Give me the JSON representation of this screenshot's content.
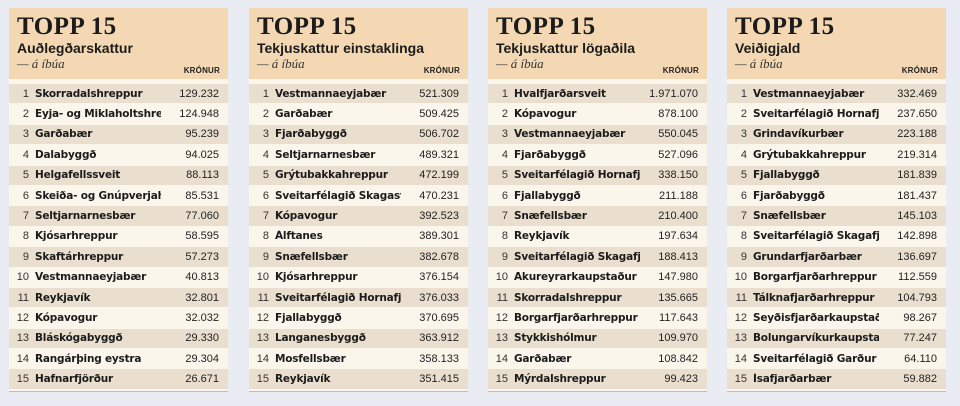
{
  "panels": [
    {
      "heading": "TOPP 15",
      "subtitle": "Auðlegðarskattur",
      "per_resident": "— á íbúa",
      "unit": "KRÓNUR",
      "rows": [
        {
          "rank": "1",
          "name": "Skorradalshreppur",
          "value": "129.232"
        },
        {
          "rank": "2",
          "name": "Eyja- og Miklaholtshreppur",
          "value": "124.948"
        },
        {
          "rank": "3",
          "name": "Garðabær",
          "value": "95.239"
        },
        {
          "rank": "4",
          "name": "Dalabyggð",
          "value": "94.025"
        },
        {
          "rank": "5",
          "name": "Helgafellssveit",
          "value": "88.113"
        },
        {
          "rank": "6",
          "name": "Skeiða- og Gnúpverjahreppur",
          "value": "85.531"
        },
        {
          "rank": "7",
          "name": "Seltjarnarnesbær",
          "value": "77.060"
        },
        {
          "rank": "8",
          "name": "Kjósarhreppur",
          "value": "58.595"
        },
        {
          "rank": "9",
          "name": "Skaftárhreppur",
          "value": "57.273"
        },
        {
          "rank": "10",
          "name": "Vestmannaeyjabær",
          "value": "40.813"
        },
        {
          "rank": "11",
          "name": "Reykjavík",
          "value": "32.801"
        },
        {
          "rank": "12",
          "name": "Kópavogur",
          "value": "32.032"
        },
        {
          "rank": "13",
          "name": "Bláskógabyggð",
          "value": "29.330"
        },
        {
          "rank": "14",
          "name": "Rangárþing eystra",
          "value": "29.304"
        },
        {
          "rank": "15",
          "name": "Hafnarfjörður",
          "value": "26.671"
        }
      ]
    },
    {
      "heading": "TOPP 15",
      "subtitle": "Tekjuskattur einstaklinga",
      "per_resident": "— á íbúa",
      "unit": "KRÓNUR",
      "rows": [
        {
          "rank": "1",
          "name": "Vestmannaeyjabær",
          "value": "521.309"
        },
        {
          "rank": "2",
          "name": "Garðabær",
          "value": "509.425"
        },
        {
          "rank": "3",
          "name": "Fjarðabyggð",
          "value": "506.702"
        },
        {
          "rank": "4",
          "name": "Seltjarnarnesbær",
          "value": "489.321"
        },
        {
          "rank": "5",
          "name": "Grýtubakkahreppur",
          "value": "472.199"
        },
        {
          "rank": "6",
          "name": "Sveitarfélagið Skagaströnd",
          "value": "470.231"
        },
        {
          "rank": "7",
          "name": "Kópavogur",
          "value": "392.523"
        },
        {
          "rank": "8",
          "name": "Álftanes",
          "value": "389.301"
        },
        {
          "rank": "9",
          "name": "Snæfellsbær",
          "value": "382.678"
        },
        {
          "rank": "10",
          "name": "Kjósarhreppur",
          "value": "376.154"
        },
        {
          "rank": "11",
          "name": "Sveitarfélagið Hornafjörður",
          "value": "376.033"
        },
        {
          "rank": "12",
          "name": "Fjallabyggð",
          "value": "370.695"
        },
        {
          "rank": "13",
          "name": "Langanesbyggð",
          "value": "363.912"
        },
        {
          "rank": "14",
          "name": "Mosfellsbær",
          "value": "358.133"
        },
        {
          "rank": "15",
          "name": "Reykjavík",
          "value": "351.415"
        }
      ]
    },
    {
      "heading": "TOPP 15",
      "subtitle": "Tekjuskattur lögaðila",
      "per_resident": "— á íbúa",
      "unit": "KRÓNUR",
      "rows": [
        {
          "rank": "1",
          "name": "Hvalfjarðarsveit",
          "value": "1.971.070"
        },
        {
          "rank": "2",
          "name": "Kópavogur",
          "value": "878.100"
        },
        {
          "rank": "3",
          "name": "Vestmannaeyjabær",
          "value": "550.045"
        },
        {
          "rank": "4",
          "name": "Fjarðabyggð",
          "value": "527.096"
        },
        {
          "rank": "5",
          "name": "Sveitarfélagið Hornafjörður",
          "value": "338.150"
        },
        {
          "rank": "6",
          "name": "Fjallabyggð",
          "value": "211.188"
        },
        {
          "rank": "7",
          "name": "Snæfellsbær",
          "value": "210.400"
        },
        {
          "rank": "8",
          "name": "Reykjavík",
          "value": "197.634"
        },
        {
          "rank": "9",
          "name": "Sveitarfélagið Skagafjörður",
          "value": "188.413"
        },
        {
          "rank": "10",
          "name": "Akureyrarkaupstaður",
          "value": "147.980"
        },
        {
          "rank": "11",
          "name": "Skorradalshreppur",
          "value": "135.665"
        },
        {
          "rank": "12",
          "name": "Borgarfjarðarhreppur",
          "value": "117.643"
        },
        {
          "rank": "13",
          "name": "Stykkishólmur",
          "value": "109.970"
        },
        {
          "rank": "14",
          "name": "Garðabær",
          "value": "108.842"
        },
        {
          "rank": "15",
          "name": "Mýrdalshreppur",
          "value": "99.423"
        }
      ]
    },
    {
      "heading": "TOPP 15",
      "subtitle": "Veiðigjald",
      "per_resident": "— á íbúa",
      "unit": "KRÓNUR",
      "rows": [
        {
          "rank": "1",
          "name": "Vestmannaeyjabær",
          "value": "332.469"
        },
        {
          "rank": "2",
          "name": "Sveitarfélagið Hornafjörður",
          "value": "237.650"
        },
        {
          "rank": "3",
          "name": "Grindavíkurbær",
          "value": "223.188"
        },
        {
          "rank": "4",
          "name": "Grýtubakkahreppur",
          "value": "219.314"
        },
        {
          "rank": "5",
          "name": "Fjallabyggð",
          "value": "181.839"
        },
        {
          "rank": "6",
          "name": "Fjarðabyggð",
          "value": "181.437"
        },
        {
          "rank": "7",
          "name": "Snæfellsbær",
          "value": "145.103"
        },
        {
          "rank": "8",
          "name": "Sveitarfélagið Skagafjörður",
          "value": "142.898"
        },
        {
          "rank": "9",
          "name": "Grundarfjarðarbær",
          "value": "136.697"
        },
        {
          "rank": "10",
          "name": "Borgarfjarðarhreppur",
          "value": "112.559"
        },
        {
          "rank": "11",
          "name": "Tálknafjarðarhreppur",
          "value": "104.793"
        },
        {
          "rank": "12",
          "name": "Seyðisfjarðarkaupstaður",
          "value": "98.267"
        },
        {
          "rank": "13",
          "name": "Bolungarvíkurkaupstaður",
          "value": "77.247"
        },
        {
          "rank": "14",
          "name": "Sveitarfélagið Garður",
          "value": "64.110"
        },
        {
          "rank": "15",
          "name": "Ísafjarðarbær",
          "value": "59.882"
        }
      ]
    }
  ]
}
